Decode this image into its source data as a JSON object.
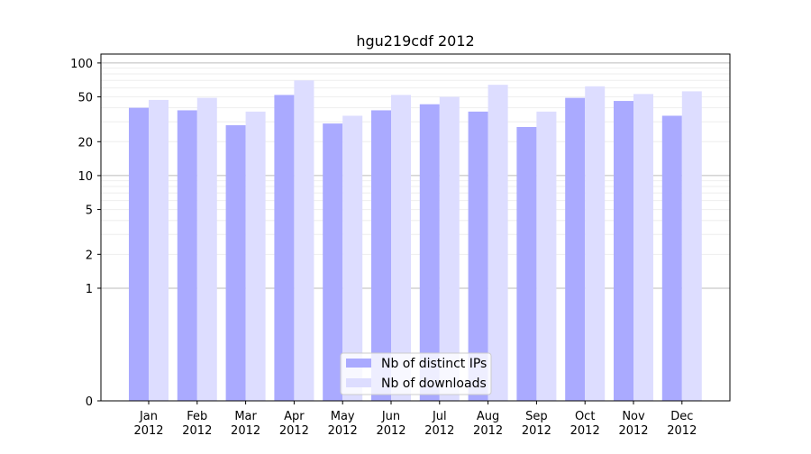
{
  "chart_data": {
    "type": "bar",
    "title": "hgu219cdf 2012",
    "xlabel": "",
    "ylabel": "",
    "y_scale": "symlog",
    "ylim": [
      0,
      120
    ],
    "yticks": [
      0,
      1,
      2,
      5,
      10,
      20,
      50,
      100
    ],
    "ytick_labels": [
      "0",
      "1",
      "2",
      "5",
      "10",
      "20",
      "50",
      "100"
    ],
    "categories": [
      "Jan\n2012",
      "Feb\n2012",
      "Mar\n2012",
      "Apr\n2012",
      "May\n2012",
      "Jun\n2012",
      "Jul\n2012",
      "Aug\n2012",
      "Sep\n2012",
      "Oct\n2012",
      "Nov\n2012",
      "Dec\n2012"
    ],
    "series": [
      {
        "name": "Nb of distinct IPs",
        "color": "#aaaaff",
        "values": [
          40,
          38,
          28,
          52,
          29,
          38,
          43,
          37,
          27,
          49,
          46,
          34
        ]
      },
      {
        "name": "Nb of downloads",
        "color": "#ddddff",
        "values": [
          47,
          49,
          37,
          70,
          34,
          52,
          50,
          64,
          37,
          62,
          53,
          56
        ]
      }
    ],
    "grid": true,
    "legend_position": "lower center"
  }
}
